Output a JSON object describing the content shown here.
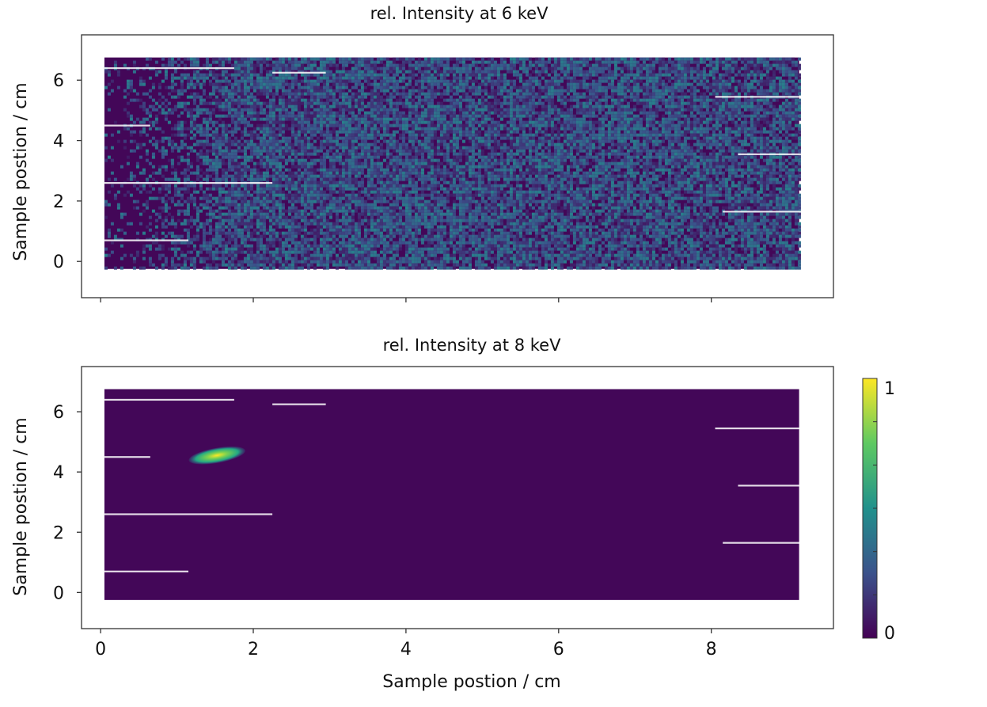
{
  "chart_data": [
    {
      "type": "heatmap",
      "title": "rel. Intensity at 6 keV",
      "xlabel": "",
      "ylabel": "Sample postion / cm",
      "xlim": [
        -0.25,
        9.6
      ],
      "ylim": [
        -1.2,
        7.5
      ],
      "xticks": [
        0,
        2,
        4,
        6,
        8
      ],
      "xtick_labels": [
        "",
        "",
        "",
        "",
        ""
      ],
      "yticks": [
        0,
        2,
        4,
        6
      ],
      "ytick_labels": [
        "0",
        "2",
        "4",
        "6"
      ],
      "scan_extent": {
        "x": [
          0.05,
          9.15
        ],
        "y": [
          -0.25,
          6.75
        ]
      },
      "field_level": 0.25,
      "hotspot": null,
      "grid": false
    },
    {
      "type": "heatmap",
      "title": "rel. Intensity at 8 keV",
      "xlabel": "Sample postion / cm",
      "ylabel": "Sample postion / cm",
      "xlim": [
        -0.25,
        9.6
      ],
      "ylim": [
        -1.2,
        7.5
      ],
      "xticks": [
        0,
        2,
        4,
        6,
        8
      ],
      "xtick_labels": [
        "0",
        "2",
        "4",
        "6",
        "8"
      ],
      "yticks": [
        0,
        2,
        4,
        6
      ],
      "ytick_labels": [
        "0",
        "2",
        "4",
        "6"
      ],
      "scan_extent": {
        "x": [
          0.05,
          9.15
        ],
        "y": [
          -0.25,
          6.75
        ]
      },
      "field_level": 0.02,
      "hotspot": {
        "x": [
          1.15,
          1.9
        ],
        "y": [
          4.3,
          4.8
        ],
        "peak": 0.95
      },
      "grid": false
    }
  ],
  "colorbar": {
    "colormap": "viridis",
    "min_label": "0",
    "max_label": "1",
    "range": [
      0,
      1
    ],
    "placement": "right"
  },
  "colors": {
    "low": "#440154",
    "mid": "#21918c",
    "high": "#fde725",
    "frame": "#333333"
  }
}
